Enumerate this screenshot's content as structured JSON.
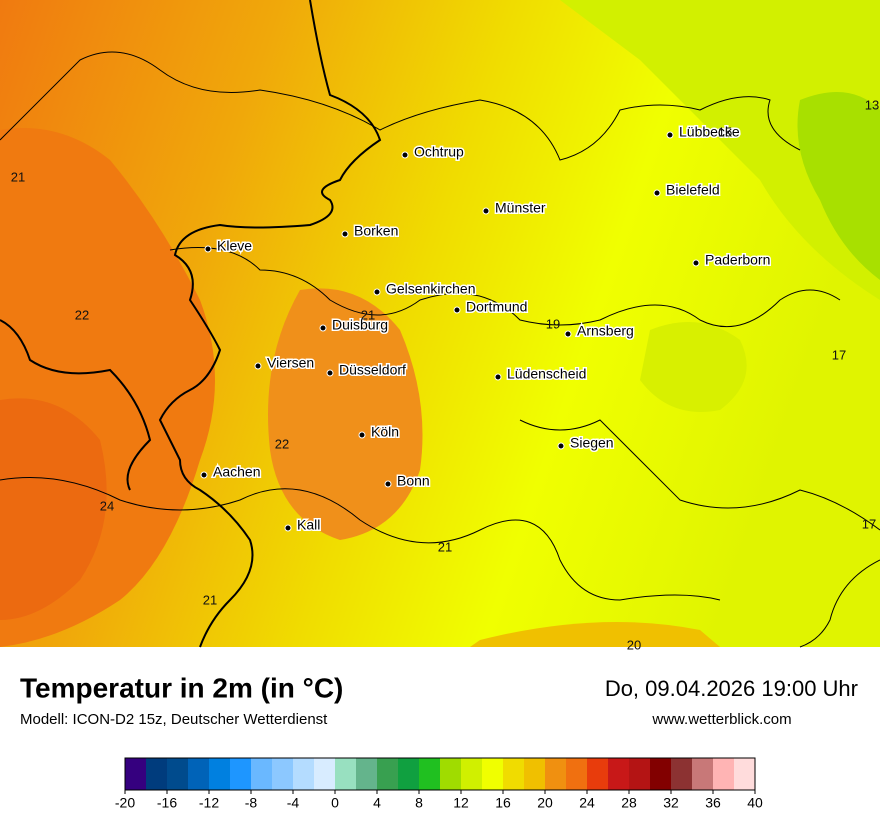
{
  "map": {
    "cities": [
      "Ochtrup",
      "Lübbecke",
      "Bielefeld",
      "Münster",
      "Borken",
      "Kleve",
      "Paderborn",
      "Gelsenkirchen",
      "Dortmund",
      "Duisburg",
      "Arnsberg",
      "Viersen",
      "Düsseldorf",
      "Lüdenscheid",
      "Köln",
      "Siegen",
      "Aachen",
      "Bonn",
      "Kall"
    ],
    "contour_labels": [
      13,
      15,
      21,
      22,
      21,
      19,
      17,
      22,
      24,
      17,
      21,
      21,
      20
    ]
  },
  "footer": {
    "title": "Temperatur in 2m (in °C)",
    "subtitle": "Modell: ICON-D2 15z, Deutscher Wetterdienst",
    "date": "Do, 09.04.2026 19:00 Uhr",
    "website": "www.wetterblick.com"
  },
  "colorbar": {
    "lim": [
      -20,
      40
    ],
    "ticks": [
      -20,
      -16,
      -12,
      -8,
      -4,
      0,
      4,
      8,
      12,
      16,
      20,
      24,
      28,
      32,
      36,
      40
    ],
    "colors": [
      "#35007f",
      "#003c7d",
      "#004b8d",
      "#0063b8",
      "#0080e0",
      "#1e96ff",
      "#6ab8ff",
      "#8cc8ff",
      "#b4dcff",
      "#d8ecff",
      "#98e0c0",
      "#64b48c",
      "#38a050",
      "#10a040",
      "#20c020",
      "#a0dc00",
      "#d0f000",
      "#f0ff00",
      "#f0dc00",
      "#f0c000",
      "#f09010",
      "#f07010",
      "#e83c0c",
      "#c81818",
      "#b41414",
      "#820000",
      "#8c3232",
      "#c87878",
      "#ffb4b4",
      "#ffdcdc"
    ]
  }
}
